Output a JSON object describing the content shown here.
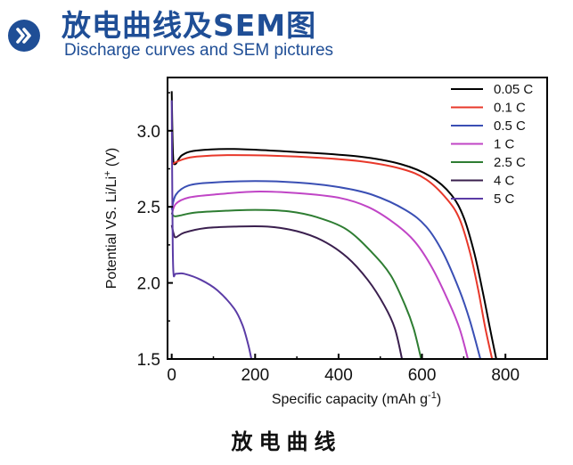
{
  "header": {
    "title_cn": "放电曲线及SEM图",
    "title_en": "Discharge curves and SEM pictures",
    "icon": "double-chevron-right-icon",
    "accent_color": "#1f4e96"
  },
  "caption": "放电曲线",
  "chart_data": {
    "type": "line",
    "xlabel": "Specific capacity (mAh g-1)",
    "ylabel": "Potential VS. Li/Li+ (V)",
    "xlim": [
      -10,
      900
    ],
    "ylim": [
      1.5,
      3.35
    ],
    "x_ticks": [
      0,
      200,
      400,
      600,
      800
    ],
    "x_tick_labels": [
      "0",
      "200",
      "400",
      "600",
      "800"
    ],
    "y_ticks": [
      1.5,
      2.0,
      2.5,
      3.0
    ],
    "y_tick_labels": [
      "1.5",
      "2.0",
      "2.5",
      "3.0"
    ],
    "legend_position": "top-right",
    "series": [
      {
        "name": "0.05 C",
        "color": "#000000",
        "points": [
          [
            0,
            3.26
          ],
          [
            3,
            2.85
          ],
          [
            8,
            2.78
          ],
          [
            25,
            2.84
          ],
          [
            60,
            2.87
          ],
          [
            150,
            2.88
          ],
          [
            300,
            2.86
          ],
          [
            450,
            2.83
          ],
          [
            550,
            2.78
          ],
          [
            620,
            2.7
          ],
          [
            670,
            2.58
          ],
          [
            700,
            2.43
          ],
          [
            725,
            2.2
          ],
          [
            745,
            1.95
          ],
          [
            763,
            1.7
          ],
          [
            778,
            1.5
          ]
        ]
      },
      {
        "name": "0.1 C",
        "color": "#e8382a",
        "points": [
          [
            0,
            2.78
          ],
          [
            25,
            2.81
          ],
          [
            60,
            2.83
          ],
          [
            150,
            2.84
          ],
          [
            300,
            2.83
          ],
          [
            450,
            2.8
          ],
          [
            550,
            2.75
          ],
          [
            610,
            2.68
          ],
          [
            660,
            2.55
          ],
          [
            690,
            2.42
          ],
          [
            715,
            2.2
          ],
          [
            735,
            1.95
          ],
          [
            752,
            1.7
          ],
          [
            768,
            1.5
          ]
        ]
      },
      {
        "name": "0.5 C",
        "color": "#3a4fb4",
        "points": [
          [
            0,
            2.48
          ],
          [
            10,
            2.58
          ],
          [
            40,
            2.64
          ],
          [
            100,
            2.66
          ],
          [
            200,
            2.67
          ],
          [
            300,
            2.66
          ],
          [
            400,
            2.63
          ],
          [
            480,
            2.58
          ],
          [
            560,
            2.48
          ],
          [
            610,
            2.37
          ],
          [
            650,
            2.2
          ],
          [
            690,
            1.95
          ],
          [
            715,
            1.75
          ],
          [
            740,
            1.5
          ]
        ]
      },
      {
        "name": "1 C",
        "color": "#c045c6",
        "points": [
          [
            0,
            2.45
          ],
          [
            10,
            2.52
          ],
          [
            40,
            2.56
          ],
          [
            100,
            2.58
          ],
          [
            200,
            2.6
          ],
          [
            300,
            2.59
          ],
          [
            400,
            2.56
          ],
          [
            470,
            2.5
          ],
          [
            530,
            2.4
          ],
          [
            580,
            2.28
          ],
          [
            620,
            2.12
          ],
          [
            660,
            1.9
          ],
          [
            690,
            1.7
          ],
          [
            710,
            1.5
          ]
        ]
      },
      {
        "name": "2.5 C",
        "color": "#2e7d32",
        "points": [
          [
            0,
            2.46
          ],
          [
            5,
            2.44
          ],
          [
            15,
            2.44
          ],
          [
            50,
            2.46
          ],
          [
            100,
            2.47
          ],
          [
            200,
            2.48
          ],
          [
            280,
            2.47
          ],
          [
            350,
            2.43
          ],
          [
            420,
            2.35
          ],
          [
            480,
            2.2
          ],
          [
            525,
            2.05
          ],
          [
            560,
            1.85
          ],
          [
            580,
            1.7
          ],
          [
            598,
            1.5
          ]
        ]
      },
      {
        "name": "4 C",
        "color": "#3a1f4e",
        "points": [
          [
            0,
            2.38
          ],
          [
            5,
            2.32
          ],
          [
            10,
            2.3
          ],
          [
            30,
            2.33
          ],
          [
            80,
            2.36
          ],
          [
            150,
            2.37
          ],
          [
            230,
            2.37
          ],
          [
            300,
            2.34
          ],
          [
            360,
            2.28
          ],
          [
            420,
            2.17
          ],
          [
            470,
            2.02
          ],
          [
            510,
            1.85
          ],
          [
            535,
            1.7
          ],
          [
            552,
            1.5
          ]
        ]
      },
      {
        "name": "5 C",
        "color": "#5b3ca6",
        "points": [
          [
            0,
            3.2
          ],
          [
            2,
            2.4
          ],
          [
            4,
            2.07
          ],
          [
            10,
            2.06
          ],
          [
            30,
            2.06
          ],
          [
            70,
            2.02
          ],
          [
            110,
            1.95
          ],
          [
            150,
            1.83
          ],
          [
            170,
            1.72
          ],
          [
            183,
            1.6
          ],
          [
            191,
            1.5
          ]
        ]
      }
    ]
  }
}
